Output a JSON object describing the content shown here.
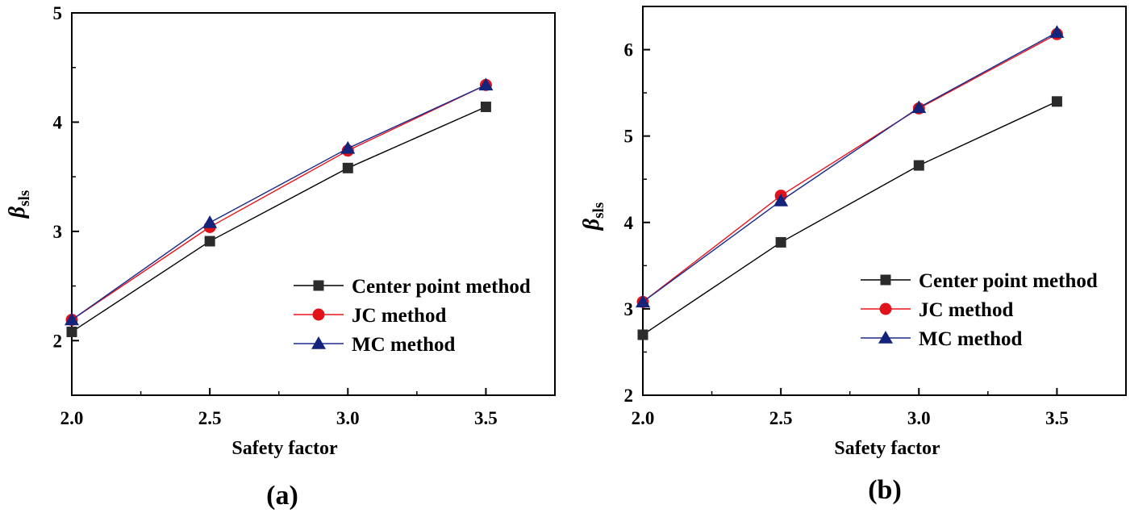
{
  "chart_data": [
    {
      "type": "line",
      "panel_label": "(a)",
      "xlabel": "Safety factor",
      "ylabel_symbol": "β",
      "ylabel_subscript": "sls",
      "xlim": [
        2.0,
        3.75
      ],
      "ylim": [
        1.5,
        5.0
      ],
      "xticks": [
        2.0,
        2.5,
        3.0,
        3.5
      ],
      "xtick_labels": [
        "2.0",
        "2.5",
        "3.0",
        "3.5"
      ],
      "yticks": [
        2,
        3,
        4,
        5
      ],
      "ytick_labels": [
        "2",
        "3",
        "4",
        "5"
      ],
      "grid": false,
      "legend_position": "lower-right",
      "x": [
        2.0,
        2.5,
        3.0,
        3.5
      ],
      "series": [
        {
          "name": "Center point method",
          "marker": "square",
          "color": "#000000",
          "marker_color": "#2b2b2b",
          "values": [
            2.08,
            2.91,
            3.58,
            4.14
          ]
        },
        {
          "name": "JC method",
          "marker": "circle",
          "color": "#e8141b",
          "marker_color": "#e0121a",
          "values": [
            2.19,
            3.04,
            3.74,
            4.34
          ]
        },
        {
          "name": "MC method",
          "marker": "triangle",
          "color": "#1a2a8a",
          "marker_color": "#14247a",
          "values": [
            2.19,
            3.08,
            3.76,
            4.34
          ]
        }
      ]
    },
    {
      "type": "line",
      "panel_label": "(b)",
      "xlabel": "Safety factor",
      "ylabel_symbol": "β",
      "ylabel_subscript": "sls",
      "xlim": [
        2.0,
        3.75
      ],
      "ylim": [
        2.0,
        6.5
      ],
      "xticks": [
        2.0,
        2.5,
        3.0,
        3.5
      ],
      "xtick_labels": [
        "2.0",
        "2.5",
        "3.0",
        "3.5"
      ],
      "yticks": [
        2,
        3,
        4,
        5,
        6
      ],
      "ytick_labels": [
        "2",
        "3",
        "4",
        "5",
        "6"
      ],
      "grid": false,
      "legend_position": "lower-right",
      "x": [
        2.0,
        2.5,
        3.0,
        3.5
      ],
      "series": [
        {
          "name": "Center point method",
          "marker": "square",
          "color": "#000000",
          "marker_color": "#2b2b2b",
          "values": [
            2.7,
            3.77,
            4.66,
            5.4
          ]
        },
        {
          "name": "JC method",
          "marker": "circle",
          "color": "#e8141b",
          "marker_color": "#e0121a",
          "values": [
            3.08,
            4.31,
            5.32,
            6.18
          ]
        },
        {
          "name": "MC method",
          "marker": "triangle",
          "color": "#1a2a8a",
          "marker_color": "#14247a",
          "values": [
            3.08,
            4.25,
            5.33,
            6.2
          ]
        }
      ]
    }
  ]
}
